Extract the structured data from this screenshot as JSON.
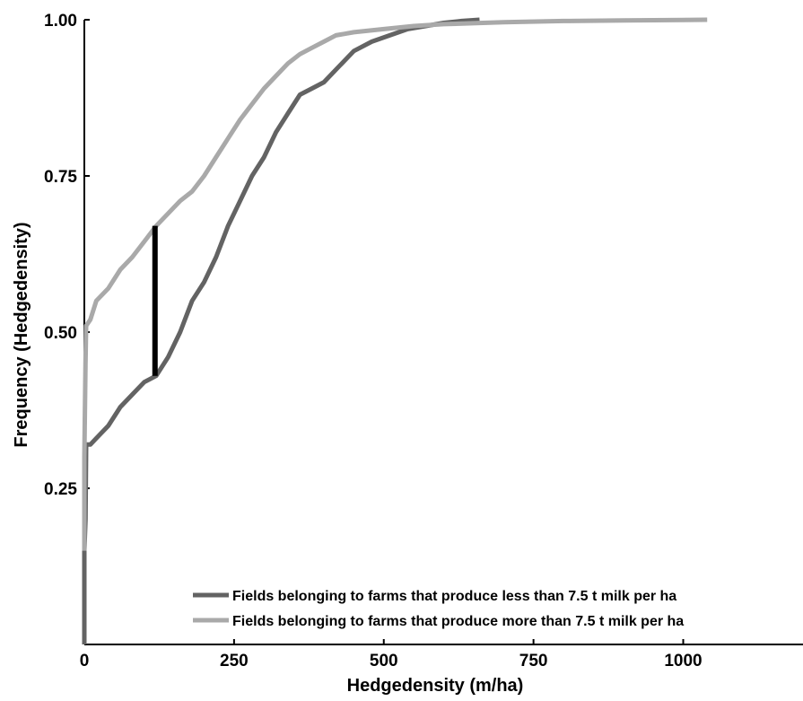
{
  "chart_data": {
    "type": "line",
    "title": "",
    "xlabel": "Hedgedensity (m/ha)",
    "ylabel": "Frequency (Hedgedensity)",
    "xlim": [
      0,
      1200
    ],
    "ylim": [
      0,
      1
    ],
    "x_ticks": [
      0,
      250,
      500,
      750,
      1000
    ],
    "x_tick_labels": [
      "0",
      "250",
      "500",
      "750",
      "1000"
    ],
    "y_ticks": [
      0.25,
      0.5,
      0.75,
      1.0
    ],
    "y_tick_labels": [
      "0.25",
      "0.50",
      "0.75",
      "1.00"
    ],
    "grid": false,
    "legend_position": "bottom-right",
    "series": [
      {
        "name": "Fields belonging to farms that produce less than 7.5 t milk per ha",
        "color": "#636363",
        "x": [
          0,
          0,
          2,
          3,
          10,
          20,
          40,
          60,
          80,
          100,
          120,
          140,
          160,
          180,
          200,
          220,
          240,
          260,
          280,
          300,
          320,
          340,
          360,
          380,
          400,
          420,
          450,
          480,
          510,
          540,
          570,
          600,
          630,
          660
        ],
        "y": [
          0.0,
          0.15,
          0.2,
          0.32,
          0.32,
          0.33,
          0.35,
          0.38,
          0.4,
          0.42,
          0.43,
          0.46,
          0.5,
          0.55,
          0.58,
          0.62,
          0.67,
          0.71,
          0.75,
          0.78,
          0.82,
          0.85,
          0.88,
          0.89,
          0.9,
          0.92,
          0.95,
          0.965,
          0.975,
          0.985,
          0.99,
          0.995,
          0.998,
          1.0
        ]
      },
      {
        "name": "Fields belonging to farms that produce more than 7.5 t milk per ha",
        "color": "#a9a9a9",
        "x": [
          0,
          0,
          2,
          3,
          10,
          20,
          40,
          60,
          80,
          100,
          120,
          140,
          160,
          180,
          200,
          220,
          240,
          260,
          280,
          300,
          320,
          340,
          360,
          380,
          400,
          420,
          450,
          500,
          550,
          600,
          700,
          800,
          900,
          1040
        ],
        "y": [
          0.15,
          0.3,
          0.45,
          0.51,
          0.52,
          0.55,
          0.57,
          0.6,
          0.62,
          0.645,
          0.67,
          0.69,
          0.71,
          0.725,
          0.75,
          0.78,
          0.81,
          0.84,
          0.865,
          0.89,
          0.91,
          0.93,
          0.945,
          0.955,
          0.965,
          0.975,
          0.98,
          0.985,
          0.99,
          0.993,
          0.996,
          0.998,
          0.999,
          1.0
        ]
      }
    ],
    "annotations": [
      {
        "type": "vertical-bar",
        "color": "#000000",
        "x": 118,
        "y_from": 0.43,
        "y_to": 0.67
      }
    ]
  }
}
